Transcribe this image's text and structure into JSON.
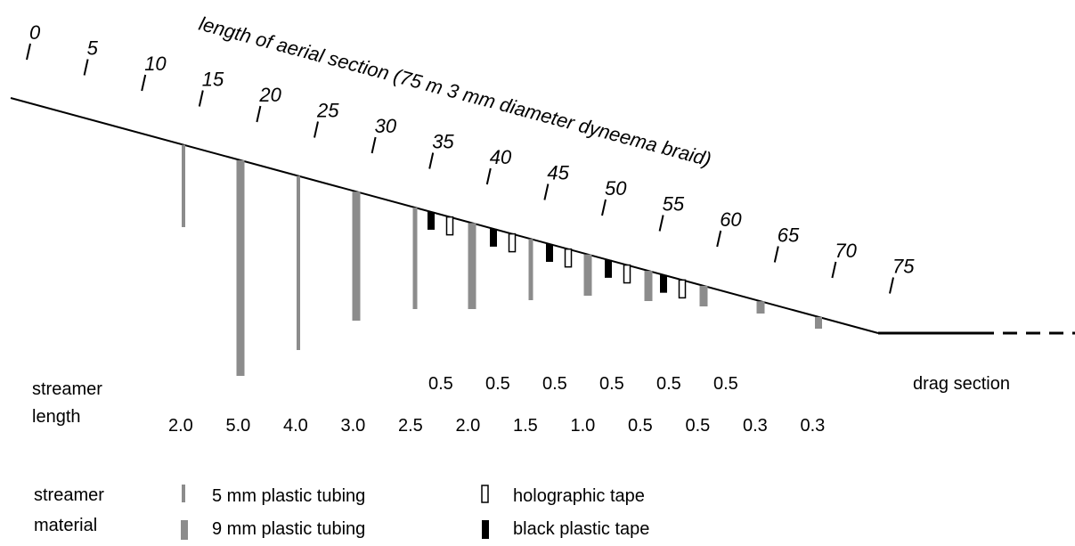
{
  "axis": {
    "title": "length of aerial section (75 m 3 mm diameter dyneema braid)",
    "tick_labels": [
      "0",
      "5",
      "10",
      "15",
      "20",
      "25",
      "30",
      "35",
      "40",
      "45",
      "50",
      "55",
      "60",
      "65",
      "70",
      "75"
    ]
  },
  "streamer_length": {
    "label_line1": "streamer",
    "label_line2": "length",
    "tape_values": [
      "0.5",
      "0.5",
      "0.5",
      "0.5",
      "0.5",
      "0.5"
    ],
    "tube_values": [
      "2.0",
      "5.0",
      "4.0",
      "3.0",
      "2.5",
      "2.0",
      "1.5",
      "1.0",
      "0.5",
      "0.5",
      "0.3",
      "0.3"
    ]
  },
  "drag_label": "drag section",
  "legend": {
    "label_line1": "streamer",
    "label_line2": "material",
    "items": {
      "tube5": "5 mm plastic tubing",
      "tube9": "9 mm plastic tubing",
      "holo": "holographic tape",
      "black": "black plastic tape"
    }
  },
  "colors": {
    "tubing": "#8c8c8c",
    "black_tape": "#000000",
    "line": "#000000"
  }
}
